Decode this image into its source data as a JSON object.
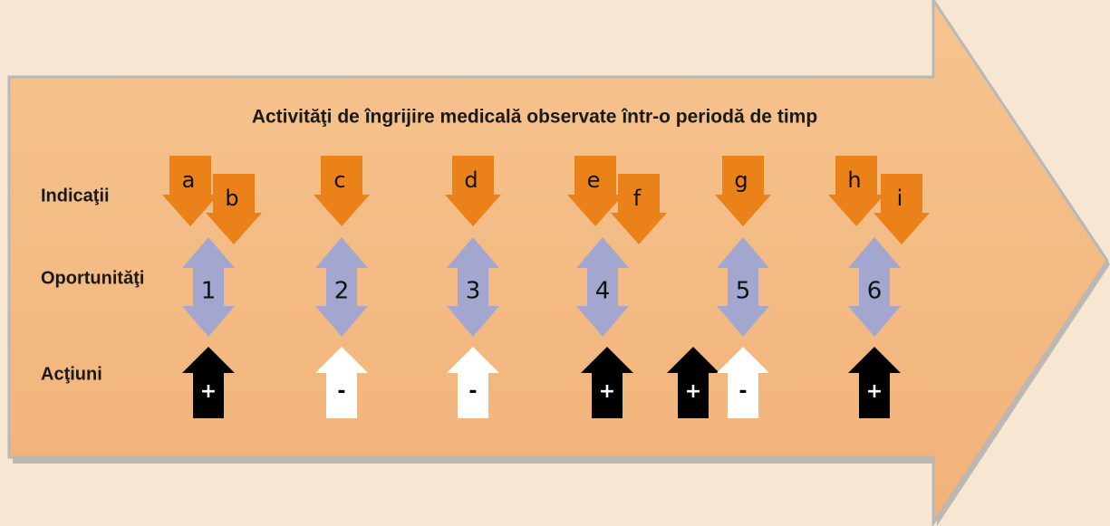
{
  "title": "Activităţi de îngrijire medicală observate într-o periodă de timp",
  "rows": [
    "Indicaţii",
    "Oportunităţi",
    "Acţiuni"
  ],
  "indications": [
    "a",
    "b",
    "c",
    "d",
    "e",
    "f",
    "g",
    "h",
    "i"
  ],
  "opportunities": [
    "1",
    "2",
    "3",
    "4",
    "5",
    "6"
  ],
  "actions": [
    {
      "sign": "+",
      "color": "#000000"
    },
    {
      "sign": "-",
      "color": "#ffffff"
    },
    {
      "sign": "-",
      "color": "#ffffff"
    },
    {
      "sign": "+",
      "color": "#000000"
    },
    {
      "sign": "+",
      "color": "#000000"
    },
    {
      "sign": "-",
      "color": "#ffffff"
    },
    {
      "sign": "+",
      "color": "#000000"
    }
  ]
}
